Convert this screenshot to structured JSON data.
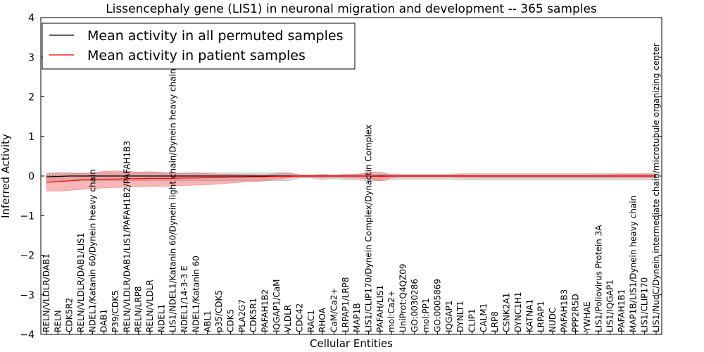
{
  "chart_data": {
    "type": "line",
    "title": "Lissencephaly gene (LIS1) in neuronal migration and development -- 365 samples",
    "xlabel": "Cellular Entities",
    "ylabel": "Inferred Activity",
    "ylim": [
      -4,
      4
    ],
    "yticks": [
      "4",
      "3",
      "2",
      "1",
      "0",
      "−1",
      "−2",
      "−3",
      "−4"
    ],
    "legend_position": "top-left",
    "categories": [
      "RELN/VLDLR/DAB1",
      "RELN",
      "CDK5R2",
      "RELN/VLDLR/DAB1/LIS1",
      "NDEL1/Katanin 60/Dynein heavy chain",
      "DAB1",
      "P39/CDK5",
      "RELN/VLDLR/DAB1/LIS1/PAFAH1B2/PAFAH1B3",
      "RELN/LRP8",
      "RELN/VLDLR",
      "NDEL1",
      "LIS1/NDEL1/Katanin 60/Dynein light chain/Dynein heavy chain",
      "NDEL1/14-3-3 E",
      "NDEL1/Katanin 60",
      "ABL1",
      "p35/CDK5",
      "CDK5",
      "PLA2G7",
      "CDK5R1",
      "PAFAH1B2",
      "IQGAP1/CaM",
      "VLDLR",
      "CDC42",
      "RAC1",
      "RHOA",
      "CaM/Ca2+",
      "LRPAP1/LRP8",
      "MAP1B",
      "LIS1/CLIP170/Dynein Complex/Dynactin Complex",
      "PAFAH/LIS1",
      "mol:Ca2+",
      "UniProt:Q4QZ09",
      "GO:0030286",
      "mol:PP1",
      "GO:0005869",
      "IQGAP1",
      "DYNLT1",
      "CLIP1",
      "CALM1",
      "LRP8",
      "CSNK2A1",
      "DYNC1H1",
      "KATNA1",
      "LRPAP1",
      "NUDC",
      "PAFAH1B3",
      "PPP2R5D",
      "YWHAE",
      "LIS1/Poliovirus Protein 3A",
      "LIS1/IQGAP1",
      "PAFAH1B1",
      "MAP1B/LIS1/Dynein heavy chain",
      "LIS1/CLIP170",
      "LIS1/NudC/Dynein intermediate chain/microtubule organizing center"
    ],
    "series": [
      {
        "name": "Mean activity in all permuted samples",
        "color": "#000000",
        "values": [
          -0.02,
          -0.01,
          0,
          0,
          0,
          0,
          0,
          0,
          0,
          0,
          0,
          0,
          0,
          0,
          0,
          0,
          0,
          0,
          0,
          0,
          0,
          0,
          0,
          0,
          0,
          0,
          0,
          0,
          0,
          0,
          0,
          0,
          0,
          0,
          0,
          0,
          0,
          0,
          0,
          0,
          0,
          0,
          0,
          0,
          0,
          0,
          0,
          0,
          0,
          0,
          0,
          0,
          0,
          0
        ],
        "lower": [
          -0.12,
          -0.12,
          -0.12,
          -0.12,
          -0.12,
          -0.12,
          -0.12,
          -0.12,
          -0.12,
          -0.12,
          -0.12,
          -0.12,
          -0.12,
          -0.12,
          -0.12,
          -0.12,
          -0.12,
          -0.12,
          -0.12,
          -0.12,
          -0.12,
          -0.12,
          -0.05,
          -0.05,
          -0.1,
          -0.06,
          -0.1,
          -0.1,
          -0.12,
          -0.12,
          -0.1,
          -0.08,
          -0.08,
          -0.08,
          -0.08,
          -0.08,
          -0.1,
          -0.1,
          -0.1,
          -0.1,
          -0.1,
          -0.1,
          -0.1,
          -0.1,
          -0.1,
          -0.1,
          -0.1,
          -0.1,
          -0.1,
          -0.1,
          -0.1,
          -0.1,
          -0.1,
          -0.1
        ],
        "upper": [
          0.08,
          0.08,
          0.08,
          0.08,
          0.08,
          0.08,
          0.08,
          0.08,
          0.08,
          0.08,
          0.08,
          0.08,
          0.08,
          0.08,
          0.08,
          0.08,
          0.08,
          0.08,
          0.08,
          0.08,
          0.08,
          0.08,
          0.03,
          0.03,
          0.05,
          0.03,
          0.05,
          0.05,
          0.05,
          0.05,
          0.05,
          0.05,
          0.05,
          0.05,
          0.05,
          0.05,
          0.06,
          0.06,
          0.06,
          0.06,
          0.06,
          0.06,
          0.06,
          0.06,
          0.06,
          0.06,
          0.06,
          0.06,
          0.06,
          0.06,
          0.06,
          0.06,
          0.06,
          0.06
        ]
      },
      {
        "name": "Mean activity in patient samples",
        "color": "#ff0000",
        "values": [
          -0.16,
          -0.14,
          -0.12,
          -0.1,
          -0.09,
          -0.08,
          -0.08,
          -0.07,
          -0.07,
          -0.06,
          -0.06,
          -0.06,
          -0.05,
          -0.05,
          -0.04,
          -0.04,
          -0.03,
          -0.03,
          -0.02,
          -0.02,
          -0.01,
          -0.01,
          0,
          0,
          0,
          0,
          0,
          0,
          0,
          -0.01,
          0,
          0,
          0,
          0,
          0,
          0,
          0,
          0,
          0,
          0,
          0,
          0,
          0,
          0,
          0,
          0,
          0,
          0,
          0,
          0,
          0,
          0,
          0,
          0
        ],
        "lower": [
          -0.38,
          -0.38,
          -0.36,
          -0.34,
          -0.32,
          -0.3,
          -0.29,
          -0.28,
          -0.27,
          -0.26,
          -0.26,
          -0.25,
          -0.24,
          -0.23,
          -0.22,
          -0.2,
          -0.18,
          -0.16,
          -0.14,
          -0.12,
          -0.08,
          -0.05,
          -0.03,
          -0.03,
          -0.05,
          -0.03,
          -0.05,
          -0.05,
          -0.08,
          -0.12,
          -0.04,
          -0.03,
          -0.03,
          -0.03,
          -0.03,
          -0.03,
          -0.04,
          -0.04,
          -0.04,
          -0.04,
          -0.04,
          -0.04,
          -0.04,
          -0.04,
          -0.04,
          -0.04,
          -0.04,
          -0.04,
          -0.04,
          -0.04,
          -0.04,
          -0.04,
          -0.04,
          -0.04
        ],
        "upper": [
          0.05,
          0.08,
          0.07,
          0.06,
          0.08,
          0.12,
          0.13,
          0.12,
          0.1,
          0.11,
          0.1,
          0.06,
          0.07,
          0.08,
          0.06,
          0.05,
          0.05,
          0.04,
          0.04,
          0.03,
          0.06,
          0.08,
          0.03,
          0.02,
          0.03,
          0.02,
          0.03,
          0.04,
          0.1,
          0.1,
          0.03,
          0.02,
          0.02,
          0.02,
          0.02,
          0.02,
          0.04,
          0.03,
          0.03,
          0.03,
          0.03,
          0.03,
          0.03,
          0.03,
          0.03,
          0.03,
          0.03,
          0.03,
          0.04,
          0.04,
          0.05,
          0.05,
          0.05,
          0.05
        ]
      }
    ]
  }
}
